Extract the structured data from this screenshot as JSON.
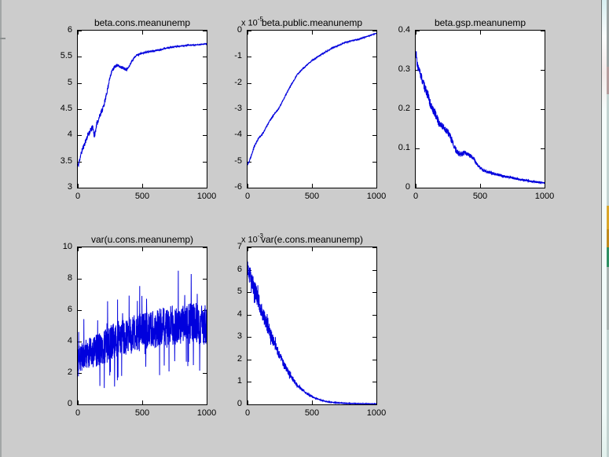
{
  "window": {
    "background_color": "#cccccc",
    "axes_background": "#ffffff",
    "trace_color": "#0000dd"
  },
  "background_window": {
    "edge_icon_colors": {
      "yellow": "#d9a62a",
      "gold": "#bf8a1e",
      "green": "#2e8f63"
    }
  },
  "chart_data": {
    "type": "line",
    "layout": "2x3 grid of 5 MATLAB trace subplots, x = MCMC iteration 0..1000",
    "plots": [
      {
        "id": "beta-cons",
        "title": "beta.cons.meanunemp",
        "xlim": [
          0,
          1000
        ],
        "ylim": [
          3,
          6
        ],
        "xticks": [
          {
            "v": 0,
            "label": "0"
          },
          {
            "v": 500,
            "label": "500"
          },
          {
            "v": 1000,
            "label": "1000"
          }
        ],
        "yticks": [
          {
            "v": 3,
            "label": "3"
          },
          {
            "v": 3.5,
            "label": "3.5"
          },
          {
            "v": 4,
            "label": "4"
          },
          {
            "v": 4.5,
            "label": "4.5"
          },
          {
            "v": 5,
            "label": "5"
          },
          {
            "v": 5.5,
            "label": "5.5"
          },
          {
            "v": 6,
            "label": "6"
          }
        ],
        "line_color": "#0000dd",
        "n": 1000,
        "trend": [
          [
            0,
            3.42
          ],
          [
            6,
            3.44
          ],
          [
            20,
            3.6
          ],
          [
            37,
            3.74
          ],
          [
            55,
            3.85
          ],
          [
            78,
            4.0
          ],
          [
            100,
            4.1
          ],
          [
            117,
            4.16
          ],
          [
            128,
            3.98
          ],
          [
            135,
            4.05
          ],
          [
            145,
            4.2
          ],
          [
            160,
            4.3
          ],
          [
            180,
            4.44
          ],
          [
            200,
            4.55
          ],
          [
            221,
            4.76
          ],
          [
            240,
            5.0
          ],
          [
            262,
            5.22
          ],
          [
            285,
            5.3
          ],
          [
            303,
            5.34
          ],
          [
            330,
            5.31
          ],
          [
            360,
            5.28
          ],
          [
            380,
            5.26
          ],
          [
            395,
            5.3
          ],
          [
            420,
            5.42
          ],
          [
            447,
            5.52
          ],
          [
            490,
            5.56
          ],
          [
            529,
            5.59
          ],
          [
            580,
            5.61
          ],
          [
            631,
            5.63
          ],
          [
            700,
            5.67
          ],
          [
            774,
            5.7
          ],
          [
            850,
            5.72
          ],
          [
            938,
            5.73
          ],
          [
            1000,
            5.75
          ]
        ],
        "noise": {
          "seed": 11,
          "amp": [
            [
              0,
              0.05
            ],
            [
              200,
              0.05
            ],
            [
              300,
              0.03
            ],
            [
              450,
              0.02
            ],
            [
              600,
              0.012
            ],
            [
              1000,
              0.006
            ]
          ]
        }
      },
      {
        "id": "beta-public",
        "title": "beta.public.meanunemp",
        "scale_prefix": "x 10",
        "scale_exp": "-5",
        "xlim": [
          0,
          1000
        ],
        "ylim": [
          -6,
          0
        ],
        "xticks": [
          {
            "v": 0,
            "label": "0"
          },
          {
            "v": 500,
            "label": "500"
          },
          {
            "v": 1000,
            "label": "1000"
          }
        ],
        "yticks": [
          {
            "v": -6,
            "label": "-6"
          },
          {
            "v": -5,
            "label": "-5"
          },
          {
            "v": -4,
            "label": "-4"
          },
          {
            "v": -3,
            "label": "-3"
          },
          {
            "v": -2,
            "label": "-2"
          },
          {
            "v": -1,
            "label": "-1"
          },
          {
            "v": 0,
            "label": "0"
          }
        ],
        "line_color": "#0000dd",
        "n": 1000,
        "trend": [
          [
            0,
            -5.1
          ],
          [
            10,
            -5.02
          ],
          [
            20,
            -4.9
          ],
          [
            50,
            -4.45
          ],
          [
            80,
            -4.15
          ],
          [
            123,
            -3.9
          ],
          [
            170,
            -3.45
          ],
          [
            245,
            -2.95
          ],
          [
            330,
            -2.15
          ],
          [
            390,
            -1.65
          ],
          [
            450,
            -1.35
          ],
          [
            500,
            -1.15
          ],
          [
            560,
            -0.95
          ],
          [
            664,
            -0.65
          ],
          [
            760,
            -0.45
          ],
          [
            860,
            -0.33
          ],
          [
            930,
            -0.22
          ],
          [
            1000,
            -0.1
          ]
        ],
        "noise": {
          "seed": 22,
          "amp": [
            [
              0,
              0.05
            ],
            [
              300,
              0.03
            ],
            [
              1000,
              0.012
            ]
          ]
        }
      },
      {
        "id": "beta-gsp",
        "title": "beta.gsp.meanunemp",
        "xlim": [
          0,
          1000
        ],
        "ylim": [
          0,
          0.4
        ],
        "xticks": [
          {
            "v": 0,
            "label": "0"
          },
          {
            "v": 500,
            "label": "500"
          },
          {
            "v": 1000,
            "label": "1000"
          }
        ],
        "yticks": [
          {
            "v": 0,
            "label": "0"
          },
          {
            "v": 0.1,
            "label": "0.1"
          },
          {
            "v": 0.2,
            "label": "0.2"
          },
          {
            "v": 0.3,
            "label": "0.3"
          },
          {
            "v": 0.4,
            "label": "0.4"
          }
        ],
        "line_color": "#0000dd",
        "n": 1000,
        "trend": [
          [
            0,
            0.33
          ],
          [
            3,
            0.35
          ],
          [
            10,
            0.315
          ],
          [
            25,
            0.3
          ],
          [
            40,
            0.285
          ],
          [
            55,
            0.27
          ],
          [
            75,
            0.25
          ],
          [
            96,
            0.235
          ],
          [
            115,
            0.21
          ],
          [
            130,
            0.2
          ],
          [
            150,
            0.19
          ],
          [
            180,
            0.165
          ],
          [
            211,
            0.155
          ],
          [
            240,
            0.145
          ],
          [
            263,
            0.135
          ],
          [
            285,
            0.115
          ],
          [
            304,
            0.1
          ],
          [
            325,
            0.09
          ],
          [
            345,
            0.085
          ],
          [
            380,
            0.088
          ],
          [
            420,
            0.082
          ],
          [
            448,
            0.075
          ],
          [
            468,
            0.063
          ],
          [
            500,
            0.05
          ],
          [
            530,
            0.043
          ],
          [
            591,
            0.037
          ],
          [
            673,
            0.03
          ],
          [
            776,
            0.023
          ],
          [
            878,
            0.017
          ],
          [
            1000,
            0.012
          ]
        ],
        "noise": {
          "seed": 33,
          "amp": [
            [
              0,
              0.012
            ],
            [
              200,
              0.01
            ],
            [
              350,
              0.007
            ],
            [
              500,
              0.004
            ],
            [
              1000,
              0.002
            ]
          ]
        }
      },
      {
        "id": "var-u-cons",
        "title": "var(u.cons.meanunemp)",
        "xlim": [
          0,
          1000
        ],
        "ylim": [
          0,
          10
        ],
        "xticks": [
          {
            "v": 0,
            "label": "0"
          },
          {
            "v": 500,
            "label": "500"
          },
          {
            "v": 1000,
            "label": "1000"
          }
        ],
        "yticks": [
          {
            "v": 0,
            "label": "0"
          },
          {
            "v": 2,
            "label": "2"
          },
          {
            "v": 4,
            "label": "4"
          },
          {
            "v": 6,
            "label": "6"
          },
          {
            "v": 8,
            "label": "8"
          },
          {
            "v": 10,
            "label": "10"
          }
        ],
        "line_color": "#0000dd",
        "n": 1000,
        "trend": [
          [
            0,
            2.9
          ],
          [
            100,
            3.3
          ],
          [
            200,
            3.6
          ],
          [
            300,
            4.2
          ],
          [
            400,
            4.4
          ],
          [
            500,
            4.6
          ],
          [
            600,
            4.8
          ],
          [
            700,
            5.0
          ],
          [
            800,
            5.1
          ],
          [
            900,
            5.2
          ],
          [
            1000,
            5.0
          ]
        ],
        "noise": {
          "seed": 44,
          "amp": [
            [
              0,
              0.9
            ],
            [
              200,
              1.1
            ],
            [
              400,
              1.2
            ],
            [
              1000,
              1.3
            ]
          ],
          "spike_prob": 0.05,
          "spike_scale": 2.8
        }
      },
      {
        "id": "var-e-cons",
        "title": "var(e.cons.meanunemp)",
        "scale_prefix": "x 10",
        "scale_exp": "-3",
        "xlim": [
          0,
          1000
        ],
        "ylim": [
          0,
          7
        ],
        "xticks": [
          {
            "v": 0,
            "label": "0"
          },
          {
            "v": 500,
            "label": "500"
          },
          {
            "v": 1000,
            "label": "1000"
          }
        ],
        "yticks": [
          {
            "v": 0,
            "label": "0"
          },
          {
            "v": 1,
            "label": "1"
          },
          {
            "v": 2,
            "label": "2"
          },
          {
            "v": 3,
            "label": "3"
          },
          {
            "v": 4,
            "label": "4"
          },
          {
            "v": 5,
            "label": "5"
          },
          {
            "v": 6,
            "label": "6"
          },
          {
            "v": 7,
            "label": "7"
          }
        ],
        "line_color": "#0000dd",
        "n": 1000,
        "trend": [
          [
            0,
            6.2
          ],
          [
            10,
            6.0
          ],
          [
            20,
            5.8
          ],
          [
            40,
            5.4
          ],
          [
            60,
            5.05
          ],
          [
            80,
            4.7
          ],
          [
            100,
            4.35
          ],
          [
            120,
            4.0
          ],
          [
            140,
            3.7
          ],
          [
            160,
            3.4
          ],
          [
            180,
            3.1
          ],
          [
            200,
            2.8
          ],
          [
            220,
            2.55
          ],
          [
            240,
            2.3
          ],
          [
            260,
            2.05
          ],
          [
            280,
            1.8
          ],
          [
            300,
            1.6
          ],
          [
            320,
            1.4
          ],
          [
            340,
            1.2
          ],
          [
            360,
            1.05
          ],
          [
            380,
            0.9
          ],
          [
            400,
            0.78
          ],
          [
            430,
            0.62
          ],
          [
            460,
            0.48
          ],
          [
            500,
            0.35
          ],
          [
            540,
            0.25
          ],
          [
            580,
            0.17
          ],
          [
            620,
            0.12
          ],
          [
            660,
            0.09
          ],
          [
            700,
            0.07
          ],
          [
            750,
            0.05
          ],
          [
            800,
            0.04
          ],
          [
            900,
            0.03
          ],
          [
            1000,
            0.025
          ]
        ],
        "noise": {
          "seed": 55,
          "amp": [
            [
              0,
              0.45
            ],
            [
              60,
              0.4
            ],
            [
              150,
              0.3
            ],
            [
              250,
              0.2
            ],
            [
              350,
              0.1
            ],
            [
              450,
              0.05
            ],
            [
              550,
              0.02
            ],
            [
              1000,
              0.008
            ]
          ],
          "spike_prob": 0.08,
          "spike_scale": 1.8
        }
      }
    ]
  }
}
